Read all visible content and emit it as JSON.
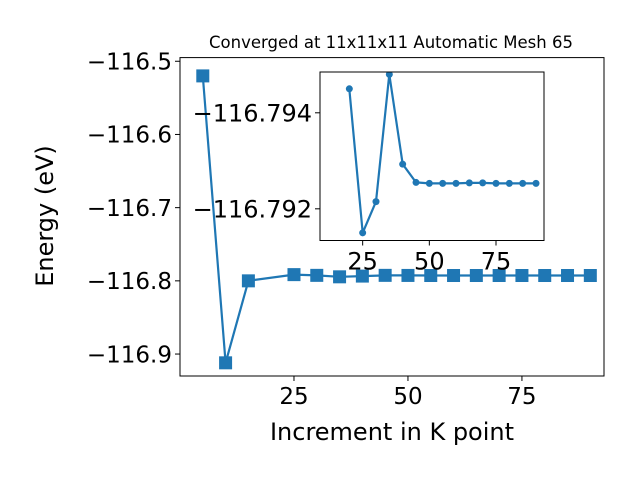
{
  "chart_data": [
    {
      "type": "line",
      "title": "Converged at 11x11x11 Automatic Mesh 65",
      "xlabel": "Increment in K point",
      "ylabel": "Energy (eV)",
      "xlim": [
        0,
        93
      ],
      "ylim": [
        -116.93,
        -116.495
      ],
      "xticks": [
        25,
        50,
        75
      ],
      "yticks": [
        -116.5,
        -116.6,
        -116.7,
        -116.8,
        -116.9
      ],
      "ytick_labels": [
        "−116.5",
        "−116.6",
        "−116.7",
        "−116.8",
        "−116.9"
      ],
      "marker": "square",
      "color": "#1f77b4",
      "grid": false,
      "x": [
        5,
        10,
        15,
        25,
        30,
        35,
        40,
        45,
        50,
        55,
        60,
        65,
        70,
        75,
        80,
        85,
        90
      ],
      "y": [
        -116.52,
        -116.912,
        -116.8,
        -116.7915,
        -116.7925,
        -116.7945,
        -116.7935,
        -116.7925,
        -116.7926,
        -116.7927,
        -116.7927,
        -116.7927,
        -116.7927,
        -116.7927,
        -116.7927,
        -116.7927,
        -116.7927
      ]
    },
    {
      "type": "line",
      "title": "",
      "xlim": [
        9,
        93
      ],
      "ylim": [
        -116.79134,
        -116.79485
      ],
      "xticks": [
        25,
        50,
        75
      ],
      "yticks": [
        -116.794,
        -116.792
      ],
      "ytick_labels": [
        "−116.794",
        "−116.792"
      ],
      "marker": "circle",
      "color": "#1f77b4",
      "grid": false,
      "x": [
        20,
        25,
        30,
        35,
        40,
        45,
        50,
        55,
        60,
        65,
        70,
        75,
        80,
        85,
        90
      ],
      "y": [
        -116.7945,
        -116.7915,
        -116.79215,
        -116.7948,
        -116.79293,
        -116.79255,
        -116.79253,
        -116.79253,
        -116.79253,
        -116.79254,
        -116.79254,
        -116.79253,
        -116.79253,
        -116.79253,
        -116.79253
      ]
    }
  ]
}
